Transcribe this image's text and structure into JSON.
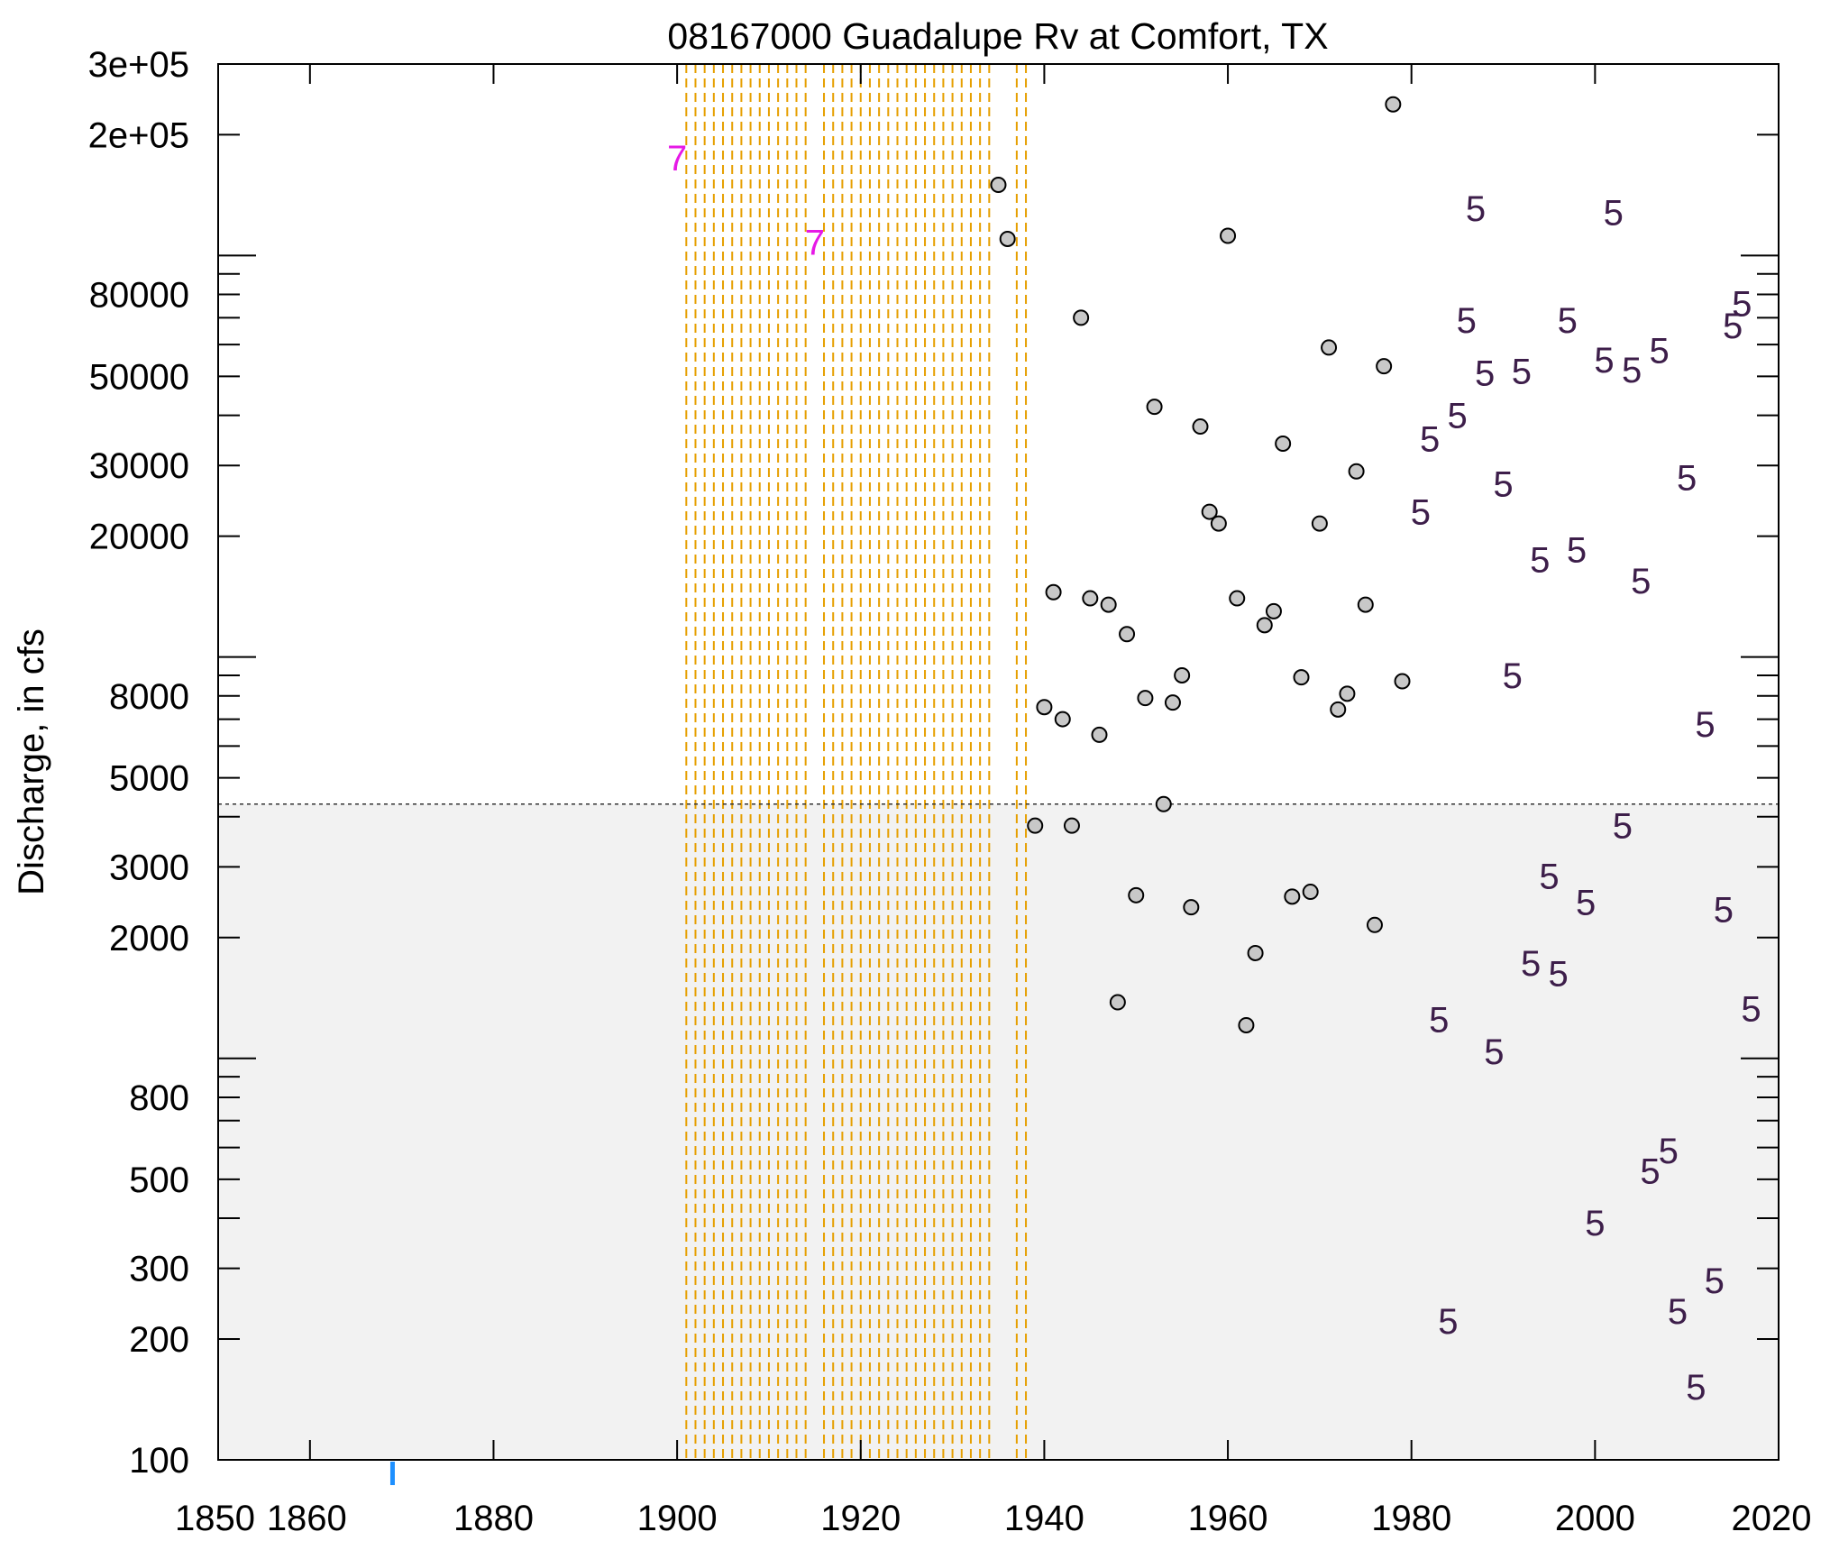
{
  "chart_data": {
    "type": "scatter",
    "title": "08167000 Guadalupe Rv at Comfort, TX",
    "xlabel": "",
    "ylabel": "Discharge, in cfs",
    "x_scale": "linear",
    "y_scale": "log",
    "xlim": [
      1850,
      2020
    ],
    "ylim": [
      100,
      300000
    ],
    "x_tick_labels": [
      "1850",
      "1860",
      "1880",
      "1900",
      "1920",
      "1940",
      "1960",
      "1980",
      "2000",
      "2020"
    ],
    "x_ticks": [
      1850,
      1860,
      1880,
      1900,
      1920,
      1940,
      1960,
      1980,
      2000,
      2020
    ],
    "y_tick_labels": [
      "3e+05",
      "2e+05",
      "80000",
      "50000",
      "30000",
      "20000",
      "8000",
      "5000",
      "3000",
      "2000",
      "800",
      "500",
      "300",
      "200",
      "100"
    ],
    "y_ticks": [
      300000,
      200000,
      80000,
      50000,
      30000,
      20000,
      8000,
      5000,
      3000,
      2000,
      800,
      500,
      300,
      200,
      100
    ],
    "threshold": 4300,
    "threshold_region_color": "#f2f2f2",
    "historic_period_lines": [
      1901,
      1902,
      1903,
      1904,
      1905,
      1906,
      1907,
      1908,
      1909,
      1910,
      1911,
      1912,
      1913,
      1914,
      1916,
      1917,
      1918,
      1919,
      1920,
      1921,
      1922,
      1923,
      1924,
      1925,
      1926,
      1927,
      1928,
      1929,
      1930,
      1931,
      1932,
      1933,
      1934,
      1937,
      1938
    ],
    "historic_line_color": "#e69f00",
    "marker_color": "#1e90ff",
    "marker_year": 1869,
    "series": [
      {
        "marker": "circle",
        "color": "#c8c8c8",
        "points": [
          [
            1935,
            150000
          ],
          [
            1936,
            110000
          ],
          [
            1939,
            3800
          ],
          [
            1940,
            7500
          ],
          [
            1941,
            14500
          ],
          [
            1942,
            7000
          ],
          [
            1943,
            3800
          ],
          [
            1944,
            70000
          ],
          [
            1945,
            14000
          ],
          [
            1946,
            6400
          ],
          [
            1947,
            13500
          ],
          [
            1948,
            1380
          ],
          [
            1949,
            11400
          ],
          [
            1950,
            2550
          ],
          [
            1951,
            7900
          ],
          [
            1952,
            42000
          ],
          [
            1953,
            4300
          ],
          [
            1954,
            7700
          ],
          [
            1955,
            9000
          ],
          [
            1956,
            2380
          ],
          [
            1957,
            37500
          ],
          [
            1958,
            23000
          ],
          [
            1959,
            21500
          ],
          [
            1960,
            112000
          ],
          [
            1961,
            14000
          ],
          [
            1962,
            1210
          ],
          [
            1963,
            1830
          ],
          [
            1964,
            12000
          ],
          [
            1965,
            13000
          ],
          [
            1966,
            34000
          ],
          [
            1967,
            2530
          ],
          [
            1968,
            8900
          ],
          [
            1969,
            2600
          ],
          [
            1970,
            21500
          ],
          [
            1971,
            59000
          ],
          [
            1972,
            7400
          ],
          [
            1973,
            8100
          ],
          [
            1974,
            29000
          ],
          [
            1975,
            13500
          ],
          [
            1976,
            2150
          ],
          [
            1977,
            53000
          ],
          [
            1978,
            238000
          ],
          [
            1979,
            8700
          ]
        ]
      },
      {
        "marker": "label",
        "label": "5",
        "color": "#3d1e4a",
        "points": [
          [
            1981,
            23000
          ],
          [
            1982,
            35000
          ],
          [
            1983,
            1250
          ],
          [
            1984,
            222
          ],
          [
            1985,
            40000
          ],
          [
            1986,
            69000
          ],
          [
            1987,
            131000
          ],
          [
            1988,
            51000
          ],
          [
            1989,
            1040
          ],
          [
            1990,
            27000
          ],
          [
            1991,
            9000
          ],
          [
            1992,
            51500
          ],
          [
            1993,
            1730
          ],
          [
            1994,
            17500
          ],
          [
            1995,
            2850
          ],
          [
            1996,
            1630
          ],
          [
            1997,
            69000
          ],
          [
            1998,
            18500
          ],
          [
            1999,
            2450
          ],
          [
            2000,
            390
          ],
          [
            2001,
            55000
          ],
          [
            2002,
            128000
          ],
          [
            2003,
            3800
          ],
          [
            2004,
            52000
          ],
          [
            2005,
            15500
          ],
          [
            2006,
            525
          ],
          [
            2007,
            58000
          ],
          [
            2008,
            590
          ],
          [
            2009,
            235
          ],
          [
            2010,
            28000
          ],
          [
            2011,
            152
          ],
          [
            2012,
            6800
          ],
          [
            2013,
            280
          ],
          [
            2014,
            2350
          ],
          [
            2015,
            67000
          ],
          [
            2016,
            76000
          ],
          [
            2017,
            1330
          ]
        ]
      },
      {
        "marker": "label",
        "label": "7",
        "color": "#e619e6",
        "points": [
          [
            1900,
            175000
          ],
          [
            1915,
            108000
          ]
        ]
      }
    ]
  }
}
